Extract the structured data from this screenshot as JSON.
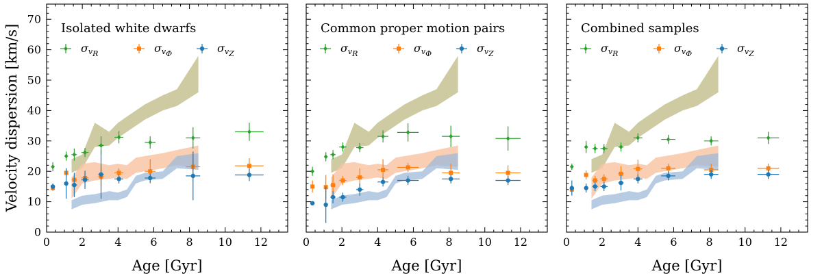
{
  "chart_data": {
    "type": "scatter",
    "ylabel": "Velocity dispersion [km/s]",
    "xlabel": "Age [Gyr]",
    "xlim": [
      0,
      13.5
    ],
    "ylim": [
      0,
      75
    ],
    "x_ticks": [
      0,
      2,
      4,
      6,
      8,
      10,
      12
    ],
    "y_ticks": [
      0,
      10,
      20,
      30,
      40,
      50,
      60,
      70
    ],
    "colors": {
      "sigma_R": "#2ca02c",
      "sigma_Phi": "#ff7f0e",
      "sigma_Z": "#1f77b4",
      "band_R": "#c9c599",
      "band_Phi": "#f8c6a4",
      "band_Z": "#9fbad9",
      "band_overlap": "#8f9aa6"
    },
    "legend": [
      {
        "symbol": "σ",
        "sub": "v",
        "subsub": "R",
        "marker": "diamond",
        "color_key": "sigma_R"
      },
      {
        "symbol": "σ",
        "sub": "v",
        "subsub": "Φ",
        "marker": "square",
        "color_key": "sigma_Phi"
      },
      {
        "symbol": "σ",
        "sub": "v",
        "subsub": "Z",
        "marker": "circle",
        "color_key": "sigma_Z"
      }
    ],
    "model_bands": {
      "R": {
        "x": [
          1.4,
          2.0,
          2.7,
          3.5,
          4.0,
          4.5,
          5.0,
          5.5,
          6.5,
          7.3,
          8.5
        ],
        "lower": [
          19.5,
          21,
          28,
          28.5,
          31,
          33,
          35,
          37,
          40,
          41.5,
          46
        ],
        "upper": [
          24,
          25.5,
          36,
          33,
          36,
          38,
          40,
          42,
          45,
          47,
          58
        ]
      },
      "Phi": {
        "x": [
          1.4,
          2.0,
          2.7,
          3.5,
          4.0,
          4.5,
          5.0,
          5.5,
          6.5,
          7.3,
          8.5
        ],
        "lower": [
          11,
          16,
          17,
          17.5,
          18,
          17.5,
          19.5,
          20,
          21,
          22,
          21.5
        ],
        "upper": [
          18,
          22.5,
          23,
          22,
          22.5,
          22,
          24.5,
          25,
          26,
          27,
          28.5
        ]
      },
      "Z": {
        "x": [
          1.4,
          2.0,
          2.7,
          3.5,
          4.0,
          4.5,
          5.0,
          5.5,
          6.5,
          7.3,
          8.5
        ],
        "lower": [
          7.5,
          9,
          9.5,
          10.5,
          10.5,
          11.5,
          16,
          17,
          17.5,
          21,
          20.5
        ],
        "upper": [
          10.5,
          12,
          12.5,
          13.5,
          13,
          14,
          18.5,
          19.5,
          20,
          25,
          26
        ]
      }
    },
    "panels": [
      {
        "title": "Isolated white dwarfs",
        "series": [
          {
            "name": "sigma_R",
            "marker": "diamond",
            "x": [
              0.35,
              1.1,
              1.55,
              2.15,
              3.05,
              4.05,
              5.8,
              8.2,
              11.35
            ],
            "y": [
              21.5,
              25,
              25.5,
              26.2,
              28.5,
              31.2,
              29.5,
              31,
              33
            ],
            "yerr": [
              1.5,
              1.5,
              2.0,
              1.5,
              3.0,
              2.0,
              2.0,
              3.5,
              3.0
            ],
            "xerr": [
              0.1,
              0.1,
              0.15,
              0.2,
              0.15,
              0.25,
              0.3,
              0.4,
              0.8
            ]
          },
          {
            "name": "sigma_Phi",
            "marker": "square",
            "x": [
              0.35,
              1.1,
              1.55,
              2.15,
              3.05,
              4.05,
              5.8,
              8.2,
              11.35
            ],
            "y": [
              14.5,
              19.5,
              17.2,
              17.8,
              18.3,
              19.5,
              20,
              21.5,
              21.8
            ],
            "yerr": [
              1.0,
              1.5,
              1.5,
              1.5,
              3.0,
              1.5,
              4.0,
              4.0,
              2.5
            ],
            "xerr": [
              0.1,
              0.1,
              0.15,
              0.2,
              0.15,
              0.25,
              0.3,
              0.4,
              0.8
            ]
          },
          {
            "name": "sigma_Z",
            "marker": "circle",
            "x": [
              0.35,
              1.1,
              1.55,
              2.15,
              3.05,
              4.05,
              5.8,
              8.2,
              11.35
            ],
            "y": [
              15,
              16,
              15.5,
              17.2,
              19,
              17.5,
              17.8,
              18.5,
              18.8
            ],
            "yerr": [
              1.0,
              5.0,
              4.0,
              3.0,
              8.0,
              1.5,
              1.5,
              8.0,
              2.0
            ],
            "xerr": [
              0.1,
              0.1,
              0.15,
              0.2,
              0.15,
              0.25,
              0.3,
              0.4,
              0.8
            ]
          }
        ]
      },
      {
        "title": "Common proper motion pairs",
        "series": [
          {
            "name": "sigma_R",
            "marker": "diamond",
            "x": [
              0.35,
              1.1,
              1.5,
              2.05,
              3.0,
              4.3,
              5.7,
              8.1,
              11.3
            ],
            "y": [
              20,
              24.8,
              25.5,
              28,
              27.8,
              31.5,
              32.8,
              31.5,
              30.8
            ],
            "yerr": [
              1.5,
              1.5,
              1.5,
              1.5,
              1.5,
              2.0,
              3.0,
              3.5,
              4.0
            ],
            "xerr": [
              0.1,
              0.1,
              0.15,
              0.2,
              0.2,
              0.3,
              0.6,
              0.5,
              0.7
            ]
          },
          {
            "name": "sigma_Phi",
            "marker": "square",
            "x": [
              0.35,
              1.1,
              1.5,
              2.05,
              3.0,
              4.3,
              5.7,
              8.1,
              11.3
            ],
            "y": [
              15,
              14.8,
              15.5,
              17,
              18,
              20.5,
              21.3,
              19.5,
              19.5
            ],
            "yerr": [
              2.0,
              4.0,
              3.5,
              1.5,
              3.0,
              3.5,
              1.5,
              3.0,
              2.5
            ],
            "xerr": [
              0.1,
              0.1,
              0.15,
              0.2,
              0.2,
              0.3,
              0.6,
              0.5,
              0.7
            ]
          },
          {
            "name": "sigma_Z",
            "marker": "circle",
            "x": [
              0.35,
              1.1,
              1.5,
              2.05,
              3.0,
              4.3,
              5.7,
              8.1,
              11.3
            ],
            "y": [
              9.5,
              9,
              11.5,
              11.5,
              14,
              16.5,
              17,
              17.5,
              17
            ],
            "yerr": [
              0.5,
              6.0,
              2.0,
              1.5,
              2.0,
              1.5,
              1.5,
              1.5,
              1.5
            ],
            "xerr": [
              0.1,
              0.1,
              0.15,
              0.2,
              0.2,
              0.3,
              0.6,
              0.5,
              0.7
            ]
          }
        ]
      },
      {
        "title": "Combined samples",
        "series": [
          {
            "name": "sigma_R",
            "marker": "diamond",
            "x": [
              0.3,
              1.1,
              1.6,
              2.1,
              3.05,
              4.0,
              5.7,
              8.1,
              11.3
            ],
            "y": [
              21.5,
              28,
              27.5,
              27.5,
              28,
              31,
              30.5,
              30,
              31
            ],
            "yerr": [
              1.0,
              2.0,
              1.5,
              1.5,
              1.5,
              1.5,
              1.5,
              1.5,
              2.0
            ],
            "xerr": [
              0.1,
              0.1,
              0.15,
              0.2,
              0.15,
              0.25,
              0.4,
              0.4,
              0.6
            ]
          },
          {
            "name": "sigma_Phi",
            "marker": "square",
            "x": [
              0.3,
              1.1,
              1.6,
              2.1,
              3.05,
              4.0,
              5.7,
              8.1,
              11.3
            ],
            "y": [
              14,
              18.8,
              17,
              17.5,
              19.2,
              20.8,
              21,
              20.5,
              21
            ],
            "yerr": [
              1.0,
              1.5,
              1.5,
              1.5,
              2.5,
              3.0,
              1.5,
              2.0,
              1.5
            ],
            "xerr": [
              0.1,
              0.1,
              0.15,
              0.2,
              0.15,
              0.25,
              0.4,
              0.4,
              0.6
            ]
          },
          {
            "name": "sigma_Z",
            "marker": "circle",
            "x": [
              0.3,
              1.1,
              1.6,
              2.1,
              3.05,
              4.0,
              5.7,
              8.1,
              11.3
            ],
            "y": [
              14.5,
              14.5,
              15,
              15,
              16.2,
              17.5,
              18.5,
              19,
              19
            ],
            "yerr": [
              2.5,
              1.5,
              1.5,
              1.5,
              2.5,
              1.5,
              1.5,
              1.5,
              1.5
            ],
            "xerr": [
              0.1,
              0.1,
              0.15,
              0.2,
              0.15,
              0.25,
              0.4,
              0.4,
              0.6
            ]
          }
        ]
      }
    ]
  }
}
